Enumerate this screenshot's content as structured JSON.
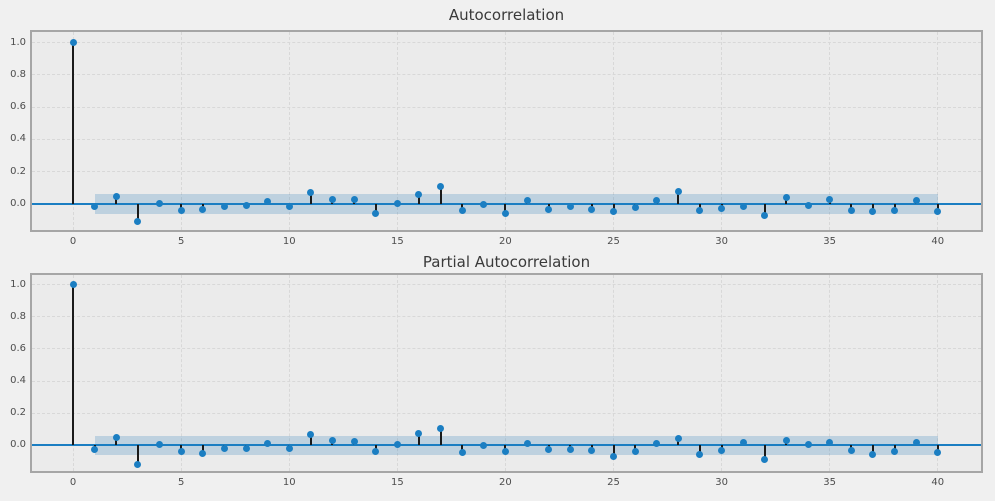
{
  "figure": {
    "background": "#f0f0f0",
    "axes_background": "#ebebeb",
    "frame_color": "#a6a6a6",
    "grid_color": "#d8d8d8",
    "accent_blue": "#1b7ec2",
    "band_color": "rgba(31,119,180,0.22)",
    "stem_color": "#1a1a1a",
    "tick_color": "#4d4d4d",
    "title_color": "#3a3a3a"
  },
  "chart_data": [
    {
      "type": "stem",
      "title": "Autocorrelation",
      "xlabel": "",
      "ylabel": "",
      "x": [
        0,
        1,
        2,
        3,
        4,
        5,
        6,
        7,
        8,
        9,
        10,
        11,
        12,
        13,
        14,
        15,
        16,
        17,
        18,
        19,
        20,
        21,
        22,
        23,
        24,
        25,
        26,
        27,
        28,
        29,
        30,
        31,
        32,
        33,
        34,
        35,
        36,
        37,
        38,
        39,
        40
      ],
      "values": [
        1.0,
        -0.015,
        0.048,
        -0.11,
        0.006,
        -0.04,
        -0.034,
        -0.014,
        -0.008,
        0.016,
        -0.012,
        0.072,
        0.026,
        0.026,
        -0.055,
        0.003,
        0.06,
        0.112,
        -0.04,
        -0.002,
        -0.06,
        0.022,
        -0.034,
        -0.012,
        -0.034,
        -0.044,
        -0.02,
        0.025,
        0.077,
        -0.038,
        -0.028,
        -0.012,
        -0.069,
        0.042,
        -0.008,
        0.028,
        -0.038,
        -0.048,
        -0.038,
        0.022,
        -0.044
      ],
      "confidence_band": {
        "halfwidth": 0.06,
        "from_lag": 1,
        "to_lag": 40
      },
      "zero_line": 0.0,
      "xtick_labels": [
        "0",
        "5",
        "10",
        "15",
        "20",
        "25",
        "30",
        "35",
        "40"
      ],
      "xtick_values": [
        0,
        5,
        10,
        15,
        20,
        25,
        30,
        35,
        40
      ],
      "ytick_labels": [
        "0.0",
        "0.2",
        "0.4",
        "0.6",
        "0.8",
        "1.0"
      ],
      "ytick_values": [
        0.0,
        0.2,
        0.4,
        0.6,
        0.8,
        1.0
      ],
      "xlim": [
        -1.9,
        42.0
      ],
      "ylim": [
        -0.16,
        1.065
      ],
      "grid": true,
      "legend": null
    },
    {
      "type": "stem",
      "title": "Partial Autocorrelation",
      "xlabel": "",
      "ylabel": "",
      "x": [
        0,
        1,
        2,
        3,
        4,
        5,
        6,
        7,
        8,
        9,
        10,
        11,
        12,
        13,
        14,
        15,
        16,
        17,
        18,
        19,
        20,
        21,
        22,
        23,
        24,
        25,
        26,
        27,
        28,
        29,
        30,
        31,
        32,
        33,
        34,
        35,
        36,
        37,
        38,
        39,
        40
      ],
      "values": [
        1.0,
        -0.024,
        0.047,
        -0.122,
        0.004,
        -0.037,
        -0.051,
        -0.02,
        -0.02,
        0.01,
        -0.02,
        0.065,
        0.03,
        0.022,
        -0.041,
        0.004,
        0.075,
        0.106,
        -0.047,
        -0.002,
        -0.041,
        0.014,
        -0.026,
        -0.026,
        -0.035,
        -0.067,
        -0.041,
        0.014,
        0.045,
        -0.055,
        -0.035,
        0.02,
        -0.09,
        0.03,
        0.004,
        0.02,
        -0.03,
        -0.057,
        -0.037,
        0.02,
        -0.045
      ],
      "confidence_band": {
        "halfwidth": 0.06,
        "from_lag": 1,
        "to_lag": 40
      },
      "zero_line": 0.0,
      "xtick_labels": [
        "0",
        "5",
        "10",
        "15",
        "20",
        "25",
        "30",
        "35",
        "40"
      ],
      "xtick_values": [
        0,
        5,
        10,
        15,
        20,
        25,
        30,
        35,
        40
      ],
      "ytick_labels": [
        "0.0",
        "0.2",
        "0.4",
        "0.6",
        "0.8",
        "1.0"
      ],
      "ytick_values": [
        0.0,
        0.2,
        0.4,
        0.6,
        0.8,
        1.0
      ],
      "xlim": [
        -1.9,
        42.0
      ],
      "ylim": [
        -0.16,
        1.06
      ],
      "grid": true,
      "legend": null
    }
  ]
}
